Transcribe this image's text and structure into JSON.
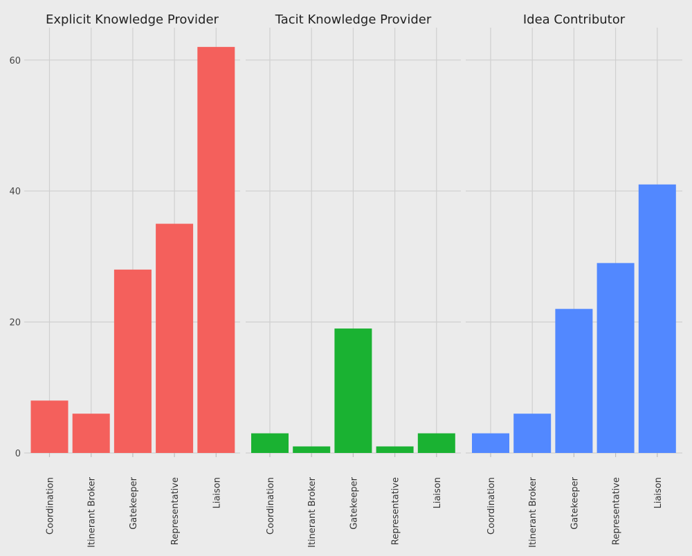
{
  "chart_data": {
    "type": "bar",
    "facet": true,
    "categories": [
      "Coordination",
      "Itinerant Broker",
      "Gatekeeper",
      "Representative",
      "Liaison"
    ],
    "yticks": [
      0,
      20,
      40,
      60
    ],
    "ylim": [
      0,
      65
    ],
    "grid": true,
    "panels": [
      {
        "title": "Explicit Knowledge Provider",
        "color": "#F4605C",
        "values": [
          8,
          6,
          28,
          35,
          62
        ]
      },
      {
        "title": "Tacit Knowledge Provider",
        "color": "#1AB232",
        "values": [
          3,
          1,
          19,
          1,
          3
        ]
      },
      {
        "title": "Idea Contributor",
        "color": "#5288FF",
        "values": [
          3,
          6,
          22,
          29,
          41
        ]
      }
    ]
  }
}
